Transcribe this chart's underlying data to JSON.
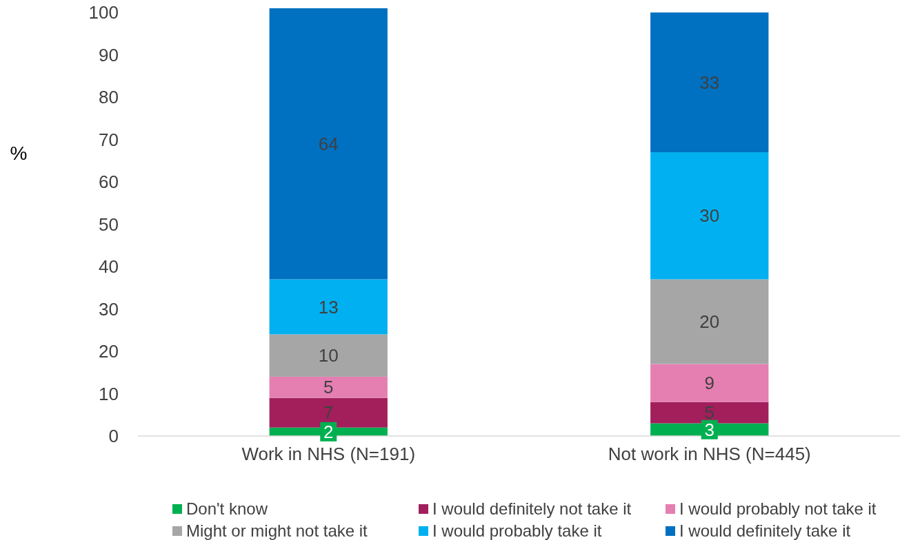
{
  "chart_data": {
    "type": "bar",
    "stacked": true,
    "ylabel": "%",
    "categories": [
      "Work in NHS (N=191)",
      "Not work in NHS (N=445)"
    ],
    "series": [
      {
        "name": "Don't know",
        "color": "#00b050",
        "values": [
          2,
          3
        ]
      },
      {
        "name": "I would definitely not take it",
        "color": "#a21f5c",
        "values": [
          7,
          5
        ]
      },
      {
        "name": "I would probably not take it",
        "color": "#e57fb2",
        "values": [
          5,
          9
        ]
      },
      {
        "name": "Might or might not take it",
        "color": "#a6a6a6",
        "values": [
          10,
          20
        ]
      },
      {
        "name": "I would probably take it",
        "color": "#00b0f0",
        "values": [
          13,
          30
        ]
      },
      {
        "name": "I would definitely take it",
        "color": "#0070c0",
        "values": [
          64,
          33
        ]
      }
    ],
    "ylim": [
      0,
      101
    ],
    "yticks": [
      0,
      10,
      20,
      30,
      40,
      50,
      60,
      70,
      80,
      90,
      100
    ],
    "grid": false,
    "data_labels": true,
    "legend": "bottom"
  }
}
